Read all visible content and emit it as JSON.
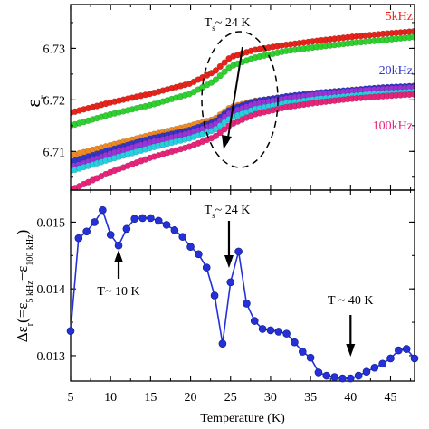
{
  "chart_data": [
    {
      "type": "scatter",
      "panel": "top",
      "title": "",
      "xlabel": "",
      "ylabel_main": "ε",
      "ylabel_sub": "r",
      "xlim": [
        5,
        48
      ],
      "ylim": [
        6.7025,
        6.7385
      ],
      "xticks": [
        5,
        10,
        15,
        20,
        25,
        30,
        35,
        40,
        45
      ],
      "yticks": [
        {
          "value": 6.71,
          "label": "6.71"
        },
        {
          "value": 6.72,
          "label": "6.72"
        },
        {
          "value": 6.73,
          "label": "6.73"
        }
      ],
      "series": [
        {
          "name": "5kHz",
          "color": "#e8241a",
          "points": [
            [
              5,
              6.7175
            ],
            [
              10,
              6.7195
            ],
            [
              15,
              6.7212
            ],
            [
              20,
              6.7232
            ],
            [
              23,
              6.7255
            ],
            [
              25,
              6.7283
            ],
            [
              28,
              6.7297
            ],
            [
              32,
              6.7307
            ],
            [
              36,
              6.7315
            ],
            [
              40,
              6.7322
            ],
            [
              44,
              6.7328
            ],
            [
              48,
              6.7333
            ]
          ]
        },
        {
          "name": "",
          "color": "#2fd12f",
          "points": [
            [
              5,
              6.715
            ],
            [
              10,
              6.7172
            ],
            [
              15,
              6.719
            ],
            [
              20,
              6.7212
            ],
            [
              23,
              6.7237
            ],
            [
              25,
              6.7265
            ],
            [
              28,
              6.7282
            ],
            [
              32,
              6.7295
            ],
            [
              36,
              6.7303
            ],
            [
              40,
              6.731
            ],
            [
              44,
              6.7316
            ],
            [
              48,
              6.7322
            ]
          ]
        },
        {
          "name": "20kHz",
          "color": "#3237c8",
          "points": [
            [
              5,
              6.708
            ],
            [
              10,
              6.7103
            ],
            [
              15,
              6.7125
            ],
            [
              20,
              6.7142
            ],
            [
              23,
              6.7158
            ],
            [
              25,
              6.7182
            ],
            [
              28,
              6.7197
            ],
            [
              32,
              6.7207
            ],
            [
              36,
              6.7214
            ],
            [
              40,
              6.7219
            ],
            [
              44,
              6.7224
            ],
            [
              48,
              6.7227
            ]
          ]
        },
        {
          "name": "",
          "color": "#f08a24",
          "points": [
            [
              5,
              6.7092
            ],
            [
              10,
              6.7112
            ],
            [
              15,
              6.7132
            ],
            [
              20,
              6.715
            ],
            [
              23,
              6.7163
            ],
            [
              25,
              6.7186
            ],
            [
              28,
              6.7198
            ],
            [
              32,
              6.7206
            ],
            [
              36,
              6.7211
            ],
            [
              40,
              6.7215
            ],
            [
              44,
              6.7218
            ],
            [
              48,
              6.722
            ]
          ]
        },
        {
          "name": "",
          "color": "#9a34d6",
          "points": [
            [
              5,
              6.7068
            ],
            [
              10,
              6.7096
            ],
            [
              15,
              6.7118
            ],
            [
              20,
              6.7136
            ],
            [
              23,
              6.7152
            ],
            [
              25,
              6.7176
            ],
            [
              28,
              6.7192
            ],
            [
              32,
              6.7203
            ],
            [
              36,
              6.7211
            ],
            [
              40,
              6.7217
            ],
            [
              44,
              6.7221
            ],
            [
              48,
              6.7224
            ]
          ]
        },
        {
          "name": "",
          "color": "#27cfe0",
          "points": [
            [
              5,
              6.7062
            ],
            [
              10,
              6.7085
            ],
            [
              15,
              6.7107
            ],
            [
              20,
              6.7126
            ],
            [
              23,
              6.7142
            ],
            [
              25,
              6.7165
            ],
            [
              28,
              6.7182
            ],
            [
              32,
              6.7194
            ],
            [
              36,
              6.7202
            ],
            [
              40,
              6.7208
            ],
            [
              44,
              6.7213
            ],
            [
              48,
              6.7216
            ]
          ]
        },
        {
          "name": "100kHz",
          "color": "#e8247a",
          "points": [
            [
              5,
              6.7025
            ],
            [
              10,
              6.706
            ],
            [
              15,
              6.7088
            ],
            [
              20,
              6.711
            ],
            [
              23,
              6.7128
            ],
            [
              25,
              6.7152
            ],
            [
              28,
              6.7172
            ],
            [
              32,
              6.7186
            ],
            [
              36,
              6.7195
            ],
            [
              40,
              6.7202
            ],
            [
              44,
              6.7207
            ],
            [
              48,
              6.7211
            ]
          ]
        }
      ],
      "annotations": [
        {
          "text_main": "T",
          "text_sub": "s",
          "text_rest": "~ 24 K",
          "x": 24.2,
          "y": 6.7353
        }
      ]
    },
    {
      "type": "line",
      "panel": "bottom",
      "title": "",
      "xlabel": "Temperature (K)",
      "ylabel_parts": {
        "pre": "Δε",
        "sub1": "r",
        "mid": "(=ε",
        "sub2": "5 kHz",
        "mid2": "−ε",
        "sub3": "100 kHz",
        "post": ")"
      },
      "xlim": [
        5,
        48
      ],
      "ylim": [
        0.01262,
        0.01548
      ],
      "xticks": [
        5,
        10,
        15,
        20,
        25,
        30,
        35,
        40,
        45
      ],
      "yticks": [
        {
          "value": 0.013,
          "label": "0.013"
        },
        {
          "value": 0.014,
          "label": "0.014"
        },
        {
          "value": 0.015,
          "label": "0.015"
        }
      ],
      "color": "#2531d8",
      "points": [
        [
          5,
          0.01337
        ],
        [
          6,
          0.01476
        ],
        [
          7,
          0.01486
        ],
        [
          8,
          0.015
        ],
        [
          9,
          0.01518
        ],
        [
          10,
          0.01481
        ],
        [
          11,
          0.01465
        ],
        [
          12,
          0.0149
        ],
        [
          13,
          0.01505
        ],
        [
          14,
          0.01506
        ],
        [
          15,
          0.01506
        ],
        [
          16,
          0.01502
        ],
        [
          17,
          0.01496
        ],
        [
          18,
          0.01488
        ],
        [
          19,
          0.01478
        ],
        [
          20,
          0.01463
        ],
        [
          21,
          0.01452
        ],
        [
          22,
          0.01432
        ],
        [
          23,
          0.0139
        ],
        [
          24,
          0.01318
        ],
        [
          25,
          0.0141
        ],
        [
          26,
          0.01456
        ],
        [
          27,
          0.01378
        ],
        [
          28,
          0.01352
        ],
        [
          29,
          0.0134
        ],
        [
          30,
          0.01338
        ],
        [
          31,
          0.01336
        ],
        [
          32,
          0.01333
        ],
        [
          33,
          0.0132
        ],
        [
          34,
          0.01306
        ],
        [
          35,
          0.01297
        ],
        [
          36,
          0.01275
        ],
        [
          37,
          0.0127
        ],
        [
          38,
          0.01268
        ],
        [
          39,
          0.01266
        ],
        [
          40,
          0.01266
        ],
        [
          41,
          0.0127
        ],
        [
          42,
          0.01276
        ],
        [
          43,
          0.01282
        ],
        [
          44,
          0.01288
        ],
        [
          45,
          0.01296
        ],
        [
          46,
          0.01308
        ],
        [
          47,
          0.0131
        ],
        [
          48,
          0.01296
        ]
      ],
      "annotations": [
        {
          "text_main": "T",
          "text_sub": "s",
          "text_rest": "~ 24 K"
        },
        {
          "text_main": "T~ 10 K",
          "text_sub": "",
          "text_rest": ""
        },
        {
          "text_main": "T ~ 40 K",
          "text_sub": "",
          "text_rest": ""
        }
      ]
    }
  ]
}
